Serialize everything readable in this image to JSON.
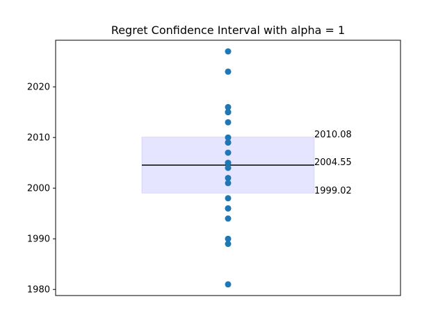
{
  "chart_data": {
    "type": "scatter",
    "title": "Regret Confidence Interval with alpha = 1",
    "xlabel": "",
    "ylabel": "",
    "ylim": [
      1978.8,
      2029.2
    ],
    "y_ticks": [
      1980,
      1990,
      2000,
      2010,
      2020
    ],
    "x_ticks_visible": false,
    "grid": false,
    "points": {
      "values": [
        2027,
        2023,
        2016,
        2015,
        2015,
        2013,
        2010,
        2009,
        2009,
        2007,
        2005,
        2005,
        2004,
        2002,
        2001,
        1998,
        1996,
        1996,
        1994,
        1990,
        1989,
        1981
      ],
      "color": "#1f77b4"
    },
    "interval": {
      "lower": 1999.02,
      "mean": 2004.55,
      "upper": 2010.08,
      "fill_color": "#0000ff",
      "fill_opacity": 0.1,
      "line_color": "#000000",
      "labels": {
        "upper": "2010.08",
        "mean": "2004.55",
        "lower": "1999.02"
      }
    }
  }
}
